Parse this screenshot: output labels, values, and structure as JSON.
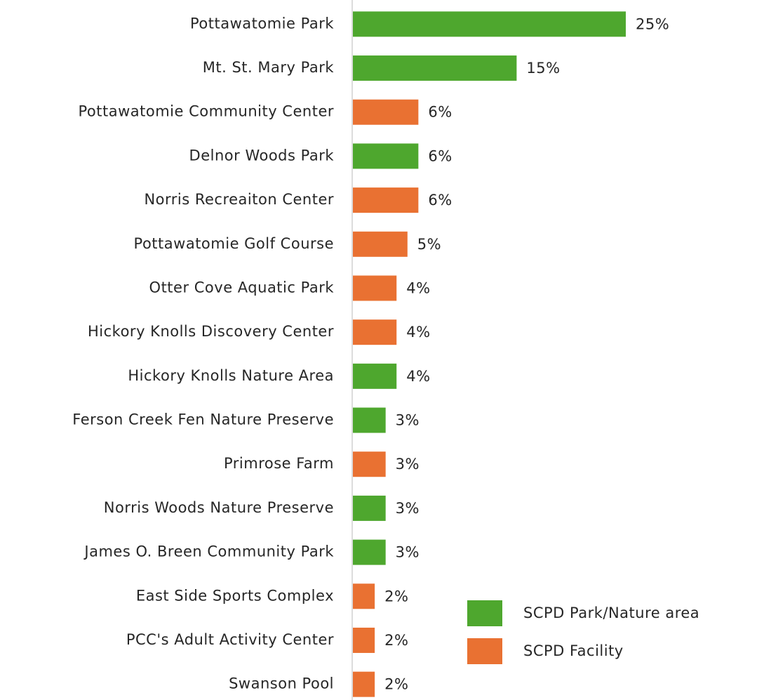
{
  "chart_data": {
    "type": "hbar",
    "categories": [
      "Pottawatomie Park",
      "Mt. St. Mary Park",
      "Pottawatomie Community Center",
      "Delnor Woods Park",
      "Norris Recreaiton Center",
      "Pottawatomie Golf Course",
      "Otter Cove Aquatic Park",
      "Hickory Knolls Discovery Center",
      "Hickory Knolls Nature Area",
      "Ferson Creek Fen Nature Preserve",
      "Primrose Farm",
      "Norris Woods Nature Preserve",
      "James O. Breen Community Park",
      "East Side Sports Complex",
      "PCC's Adult Activity Center",
      "Swanson Pool"
    ],
    "series": [
      {
        "name": "SCPD Park/Nature area",
        "color": "#4ea72e",
        "values": [
          25,
          15,
          null,
          6,
          null,
          null,
          null,
          null,
          4,
          3,
          null,
          3,
          3,
          null,
          null,
          null
        ],
        "value_labels": [
          "25%",
          "15%",
          null,
          "6%",
          null,
          null,
          null,
          null,
          "4%",
          "3%",
          null,
          "3%",
          "3%",
          null,
          null,
          null
        ]
      },
      {
        "name": "SCPD Facility",
        "color": "#e97132",
        "values": [
          null,
          null,
          6,
          null,
          6,
          5,
          4,
          4,
          null,
          null,
          3,
          null,
          null,
          2,
          2,
          2
        ],
        "value_labels": [
          null,
          null,
          "6%",
          null,
          "6%",
          "5%",
          "4%",
          "4%",
          null,
          null,
          "3%",
          null,
          null,
          "2%",
          "2%",
          "2%"
        ]
      }
    ],
    "xlim": [
      0,
      25
    ],
    "legend": "bottom-right"
  }
}
